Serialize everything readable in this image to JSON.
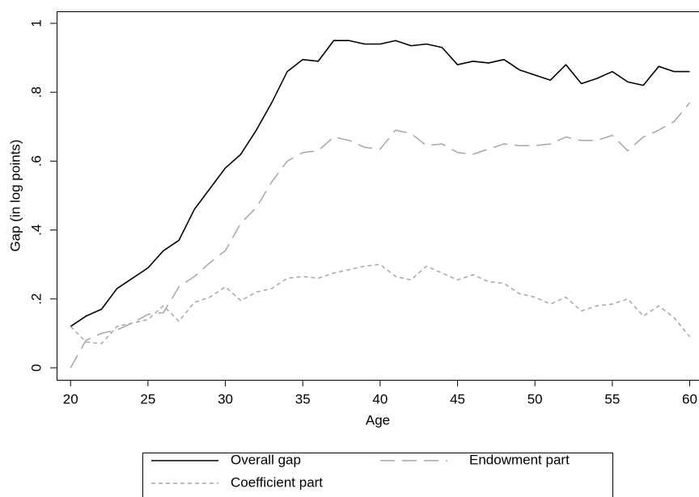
{
  "chart_data": {
    "type": "line",
    "xlabel": "Age",
    "ylabel": "Gap (in log points)",
    "x": [
      20,
      21,
      22,
      23,
      24,
      25,
      26,
      27,
      28,
      29,
      30,
      31,
      32,
      33,
      34,
      35,
      36,
      37,
      38,
      39,
      40,
      41,
      42,
      43,
      44,
      45,
      46,
      47,
      48,
      49,
      50,
      51,
      52,
      53,
      54,
      55,
      56,
      57,
      58,
      59,
      60
    ],
    "series": [
      {
        "name": "Overall gap",
        "color": "#000000",
        "values": [
          0.12,
          0.15,
          0.17,
          0.23,
          0.26,
          0.29,
          0.34,
          0.37,
          0.46,
          0.52,
          0.58,
          0.62,
          0.69,
          0.77,
          0.86,
          0.895,
          0.89,
          0.95,
          0.95,
          0.94,
          0.94,
          0.95,
          0.935,
          0.94,
          0.93,
          0.88,
          0.89,
          0.885,
          0.895,
          0.865,
          0.85,
          0.835,
          0.88,
          0.825,
          0.84,
          0.86,
          0.83,
          0.82,
          0.875,
          0.86,
          0.86
        ]
      },
      {
        "name": "Endowment part",
        "color": "#a6a6a6",
        "values": [
          0.0,
          0.08,
          0.1,
          0.11,
          0.13,
          0.155,
          0.16,
          0.235,
          0.265,
          0.305,
          0.34,
          0.42,
          0.465,
          0.54,
          0.6,
          0.625,
          0.63,
          0.67,
          0.66,
          0.64,
          0.635,
          0.69,
          0.68,
          0.645,
          0.65,
          0.625,
          0.62,
          0.635,
          0.65,
          0.645,
          0.645,
          0.65,
          0.67,
          0.66,
          0.66,
          0.675,
          0.63,
          0.67,
          0.69,
          0.715,
          0.77
        ]
      },
      {
        "name": "Coefficient part",
        "color": "#a6a6a6",
        "values": [
          0.12,
          0.075,
          0.07,
          0.12,
          0.13,
          0.14,
          0.18,
          0.135,
          0.19,
          0.205,
          0.235,
          0.195,
          0.22,
          0.23,
          0.26,
          0.265,
          0.26,
          0.275,
          0.285,
          0.295,
          0.3,
          0.265,
          0.255,
          0.295,
          0.275,
          0.255,
          0.27,
          0.25,
          0.245,
          0.215,
          0.205,
          0.185,
          0.205,
          0.165,
          0.18,
          0.185,
          0.2,
          0.15,
          0.18,
          0.145,
          0.09
        ]
      }
    ],
    "xlim": [
      19.1,
      60.6
    ],
    "xticks": [
      20,
      25,
      30,
      35,
      40,
      45,
      50,
      55,
      60
    ],
    "ylim": [
      -0.035,
      1.035
    ],
    "yticks": [
      0,
      {
        "value": 0.2,
        "label": ".2"
      },
      {
        "value": 0.4,
        "label": ".4"
      },
      {
        "value": 0.6,
        "label": ".6"
      },
      {
        "value": 0.8,
        "label": ".8"
      },
      1
    ],
    "grid": false
  }
}
